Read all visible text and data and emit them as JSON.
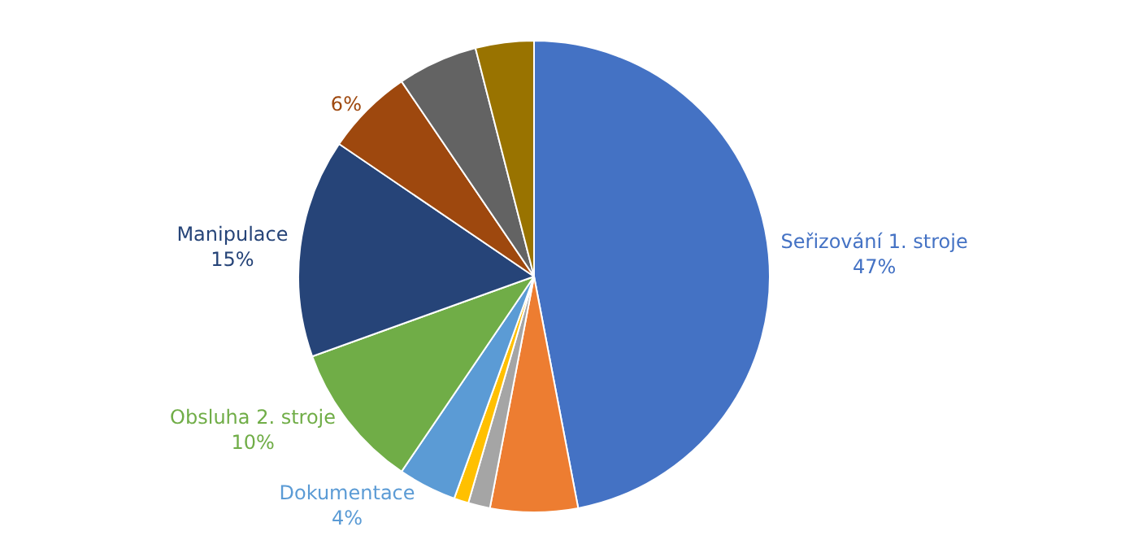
{
  "chart_data": {
    "type": "pie",
    "categories": [
      "Seřizování 1. stroje",
      null,
      null,
      null,
      "Dokumentace",
      "Obsluha 2. stroje",
      "Manipulace",
      null,
      null,
      null
    ],
    "values": [
      47,
      6,
      1.5,
      1,
      4,
      10,
      15,
      6,
      5.5,
      4
    ],
    "value_labels": [
      "47%",
      null,
      null,
      null,
      "4%",
      "10%",
      "15%",
      "6%",
      null,
      null
    ],
    "colors": [
      "#4472c4",
      "#ed7d31",
      "#a5a5a5",
      "#ffc000",
      "#5b9bd5",
      "#70ad47",
      "#264478",
      "#9e480e",
      "#636363",
      "#997300"
    ],
    "legend": false
  }
}
